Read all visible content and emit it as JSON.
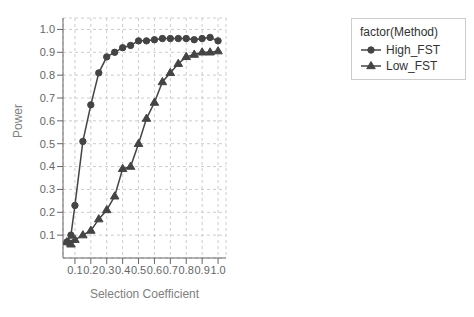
{
  "chart_data": {
    "type": "line",
    "x_label": "Selection Coefficient",
    "y_label": "Power",
    "legend_title": "factor(Method)",
    "legend": "right",
    "grid": true,
    "x": [
      0.05,
      0.075,
      0.1,
      0.15,
      0.2,
      0.25,
      0.3,
      0.35,
      0.4,
      0.45,
      0.5,
      0.55,
      0.6,
      0.65,
      0.7,
      0.75,
      0.8,
      0.85,
      0.9,
      0.95,
      1.0
    ],
    "series": [
      {
        "name": "High_FST",
        "color": "#444444",
        "marker": "circle",
        "values": [
          0.07,
          0.1,
          0.23,
          0.51,
          0.67,
          0.81,
          0.88,
          0.9,
          0.92,
          0.93,
          0.95,
          0.95,
          0.955,
          0.96,
          0.96,
          0.96,
          0.96,
          0.955,
          0.96,
          0.965,
          0.95
        ]
      },
      {
        "name": "Low_FST",
        "color": "#444444",
        "marker": "triangle",
        "values": [
          0.07,
          0.06,
          0.08,
          0.1,
          0.12,
          0.17,
          0.21,
          0.27,
          0.39,
          0.4,
          0.5,
          0.61,
          0.68,
          0.77,
          0.81,
          0.85,
          0.88,
          0.89,
          0.9,
          0.9,
          0.905
        ]
      }
    ],
    "xlim": [
      0.025,
      1.05
    ],
    "ylim": [
      0.0,
      1.05
    ],
    "xticks": [
      0.1,
      0.2,
      0.3,
      0.4,
      0.5,
      0.6,
      0.7,
      0.8,
      0.9,
      {
        "value": 1.0,
        "label": "1.0"
      }
    ],
    "yticks": [
      0.1,
      0.2,
      0.3,
      0.4,
      0.5,
      0.6,
      0.7,
      0.8,
      0.9,
      {
        "value": 1.0,
        "label": "1.0"
      }
    ]
  }
}
